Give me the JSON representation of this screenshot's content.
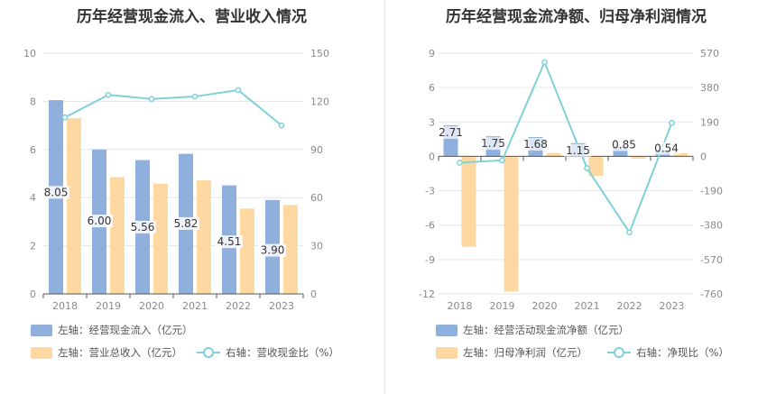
{
  "colors": {
    "bar_primary": "#8fb0dc",
    "bar_secondary": "#fdd9a1",
    "line": "#7fd1d8",
    "grid": "#e6e6e6",
    "axis": "#555555"
  },
  "chart_data": [
    {
      "type": "bar",
      "title": "历年经营现金流入、营业收入情况",
      "categories": [
        "2018",
        "2019",
        "2020",
        "2021",
        "2022",
        "2023"
      ],
      "left_axis": {
        "ticks": [
          "0",
          "2",
          "4",
          "6",
          "8",
          "10"
        ],
        "ylim": [
          0,
          10
        ]
      },
      "right_axis": {
        "ticks": [
          "0",
          "30",
          "60",
          "90",
          "120",
          "150"
        ],
        "ylim": [
          0,
          150
        ]
      },
      "series": [
        {
          "name": "左轴：经营现金流入（亿元）",
          "type": "bar",
          "axis": "left",
          "values": [
            8.05,
            6.0,
            5.56,
            5.82,
            4.51,
            3.9
          ],
          "labels": [
            "8.05",
            "6.00",
            "5.56",
            "5.82",
            "4.51",
            "3.90"
          ]
        },
        {
          "name": "左轴：营业总收入（亿元）",
          "type": "bar",
          "axis": "left",
          "values": [
            7.3,
            4.85,
            4.58,
            4.72,
            3.55,
            3.7
          ]
        },
        {
          "name": "右轴：营收现金比（%）",
          "type": "line",
          "axis": "right",
          "values": [
            110,
            124,
            121.5,
            123,
            127,
            105
          ]
        }
      ]
    },
    {
      "type": "bar",
      "title": "历年经营现金流净额、归母净利润情况",
      "categories": [
        "2018",
        "2019",
        "2020",
        "2021",
        "2022",
        "2023"
      ],
      "left_axis": {
        "ticks": [
          "-12",
          "-9",
          "-6",
          "-3",
          "0",
          "3",
          "6",
          "9"
        ],
        "ylim": [
          -12,
          9
        ]
      },
      "right_axis": {
        "ticks": [
          "-760",
          "-570",
          "-380",
          "-190",
          "0",
          "190",
          "380",
          "570"
        ],
        "ylim": [
          -760,
          570
        ]
      },
      "series": [
        {
          "name": "左轴：经营活动现金流净额（亿元）",
          "type": "bar",
          "axis": "left",
          "values": [
            2.71,
            1.75,
            1.68,
            1.15,
            0.85,
            0.54
          ],
          "labels": [
            "2.71",
            "1.75",
            "1.68",
            "1.15",
            "0.85",
            "0.54"
          ]
        },
        {
          "name": "左轴：归母净利润（亿元）",
          "type": "bar",
          "axis": "left",
          "values": [
            -7.9,
            -11.8,
            0.3,
            -1.7,
            -0.2,
            0.3
          ]
        },
        {
          "name": "右轴：净现比（%）",
          "type": "line",
          "axis": "right",
          "values": [
            -35,
            -22,
            520,
            -65,
            -420,
            185
          ]
        }
      ]
    }
  ]
}
